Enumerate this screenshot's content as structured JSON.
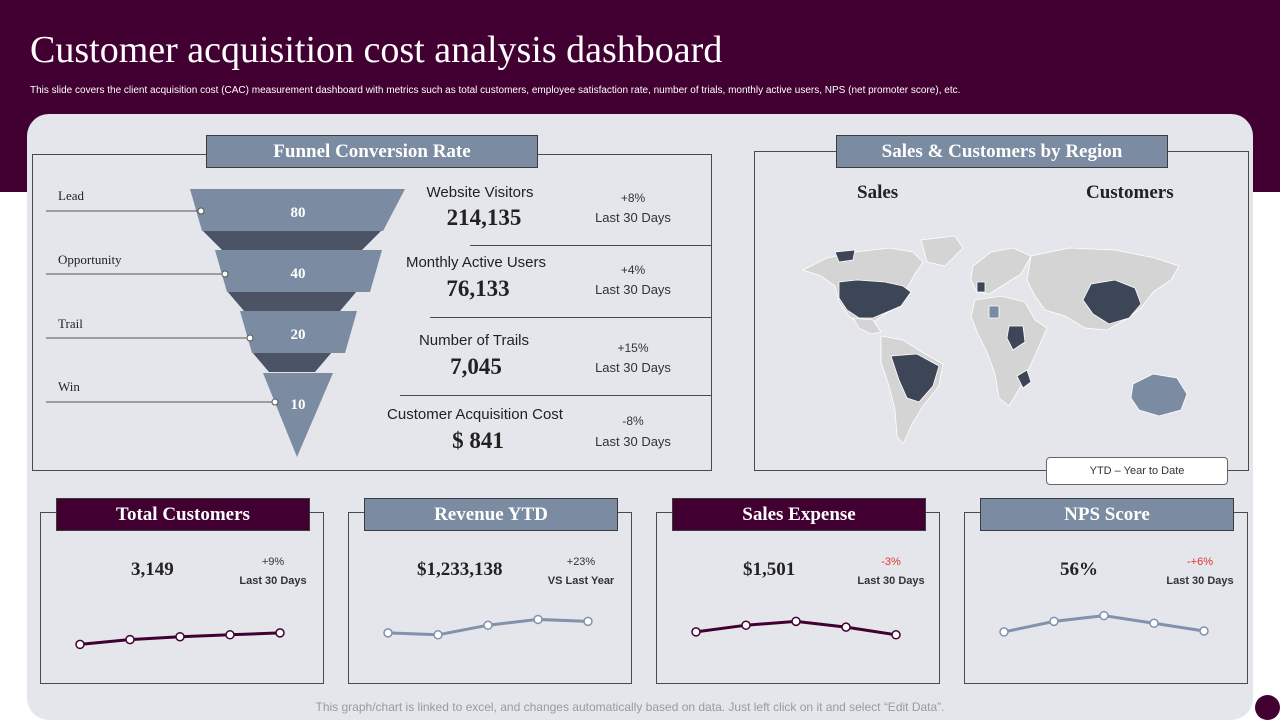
{
  "header": {
    "title": "Customer acquisition cost analysis dashboard",
    "subtitle": "This slide covers the client acquisition cost (CAC) measurement dashboard with metrics such as total customers, employee satisfaction rate, number of trials, monthly active users, NPS (net promoter score), etc."
  },
  "funnel": {
    "title": "Funnel Conversion Rate",
    "stages": [
      {
        "label": "Lead",
        "value": "80"
      },
      {
        "label": "Opportunity",
        "value": "40"
      },
      {
        "label": "Trail",
        "value": "20"
      },
      {
        "label": "Win",
        "value": "10"
      }
    ],
    "metrics": [
      {
        "label": "Website Visitors",
        "value": "214,135",
        "change": "+8%",
        "period": "Last 30 Days"
      },
      {
        "label": "Monthly Active Users",
        "value": "76,133",
        "change": "+4%",
        "period": "Last 30 Days"
      },
      {
        "label": "Number of Trails",
        "value": "7,045",
        "change": "+15%",
        "period": "Last 30 Days"
      },
      {
        "label": "Customer Acquisition  Cost",
        "value": "$ 841",
        "change": "-8%",
        "period": "Last 30 Days"
      }
    ]
  },
  "region": {
    "title": "Sales & Customers by Region",
    "sales_label": "Sales",
    "customers_label": "Customers",
    "ytd_label": "YTD – Year  to Date"
  },
  "kpis": [
    {
      "title": "Total Customers",
      "value": "3,149",
      "change": "+9%",
      "period": "Last 30 Days",
      "negative": false
    },
    {
      "title": "Revenue YTD",
      "value": "$1,233,138",
      "change": "+23%",
      "period": "VS Last Year",
      "negative": false
    },
    {
      "title": "Sales Expense",
      "value": "$1,501",
      "change": "-3%",
      "period": "Last 30 Days",
      "negative": true
    },
    {
      "title": "NPS Score",
      "value": "56%",
      "change": "-+6%",
      "period": "Last 30 Days",
      "negative": true
    }
  ],
  "footer": {
    "note": "This graph/chart is linked to excel, and changes automatically based on data. Just left click on it and select “Edit Data”."
  },
  "colors": {
    "plum": "#420032",
    "slate": "#7b8ba1",
    "dark_region": "#3d4656",
    "blue_region": "#7b8ba1",
    "land": "#d4d4d4",
    "spark_plum": "#420032",
    "spark_slate": "#8292ab"
  },
  "chart_data": [
    {
      "type": "bar",
      "title": "Funnel Conversion Rate",
      "categories": [
        "Lead",
        "Opportunity",
        "Trail",
        "Win"
      ],
      "values": [
        80,
        40,
        20,
        10
      ]
    },
    {
      "type": "line",
      "title": "Total Customers",
      "x": [
        1,
        2,
        3,
        4,
        5
      ],
      "values": [
        2,
        3,
        3.6,
        4,
        4.4
      ],
      "ylim": [
        0,
        10
      ]
    },
    {
      "type": "line",
      "title": "Revenue YTD",
      "x": [
        1,
        2,
        3,
        4,
        5
      ],
      "values": [
        4.4,
        4,
        6,
        7.2,
        6.8
      ],
      "ylim": [
        0,
        10
      ]
    },
    {
      "type": "line",
      "title": "Sales Expense",
      "x": [
        1,
        2,
        3,
        4,
        5
      ],
      "values": [
        4.6,
        6,
        6.8,
        5.6,
        4
      ],
      "ylim": [
        0,
        10
      ]
    },
    {
      "type": "line",
      "title": "NPS Score",
      "x": [
        1,
        2,
        3,
        4,
        5
      ],
      "values": [
        4.6,
        6.8,
        8,
        6.4,
        4.8
      ],
      "ylim": [
        0,
        10
      ]
    }
  ]
}
